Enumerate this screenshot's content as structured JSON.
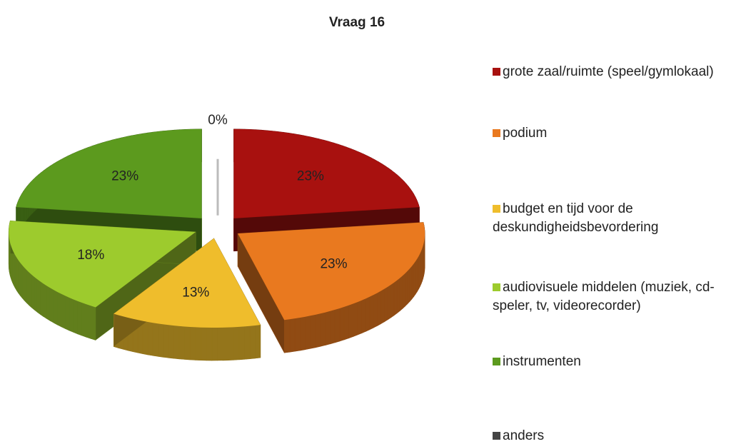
{
  "chart_data": {
    "type": "pie",
    "title": "Vraag 16",
    "categories": [
      "grote zaal/ruimte (speel/gymlokaal)",
      "podium",
      "budget en tijd voor de deskundigheidsbevordering",
      "audiovisuele middelen (muziek, cd-speler, tv, videorecorder)",
      "instrumenten",
      "anders"
    ],
    "values": [
      23,
      23,
      13,
      18,
      23,
      0
    ],
    "value_labels": [
      "23%",
      "23%",
      "13%",
      "18%",
      "23%",
      "0%"
    ],
    "colors": [
      "#a8110f",
      "#e9791f",
      "#efbd2c",
      "#9dcb2d",
      "#5c9a1e",
      "#444444"
    ],
    "legend": "right"
  }
}
